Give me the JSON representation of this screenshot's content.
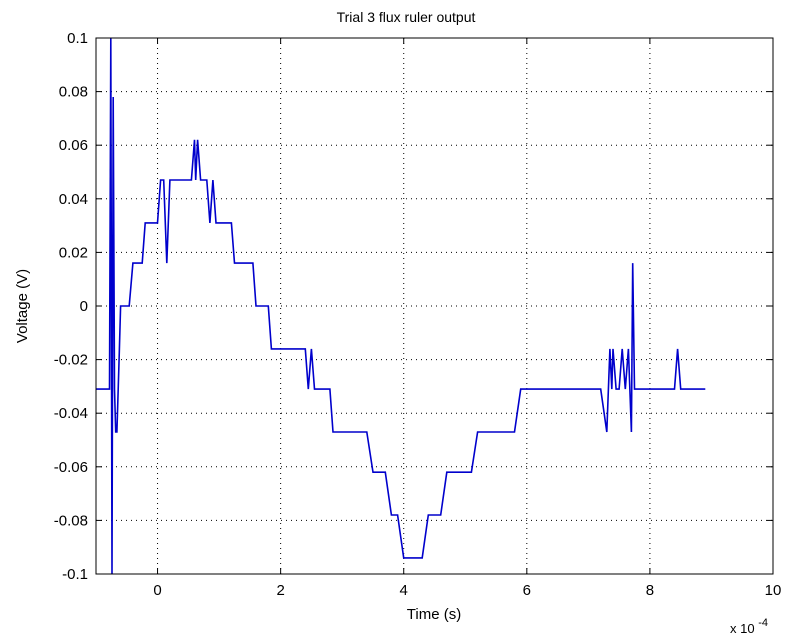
{
  "chart_data": {
    "type": "line",
    "title": "Trial 3 flux ruler output",
    "xlabel": "Time (s)",
    "ylabel": "Voltage (V)",
    "x_scale_text": "x 10",
    "x_scale_exponent": "-4",
    "xlim": [
      -1,
      10
    ],
    "ylim": [
      -0.1,
      0.1
    ],
    "x_ticks": [
      0,
      2,
      4,
      6,
      8,
      10
    ],
    "x_tick_labels": [
      "0",
      "2",
      "4",
      "6",
      "8",
      "10"
    ],
    "y_ticks": [
      -0.1,
      -0.08,
      -0.06,
      -0.04,
      -0.02,
      0,
      0.02,
      0.04,
      0.06,
      0.08,
      0.1
    ],
    "y_tick_labels": [
      "-0.1",
      "-0.08",
      "-0.06",
      "-0.04",
      "-0.02",
      "0",
      "0.02",
      "0.04",
      "0.06",
      "0.08",
      "0.1"
    ],
    "grid": true,
    "series": [
      {
        "color": "#0000cc",
        "x": [
          -1.0,
          -0.78,
          -0.76,
          -0.74,
          -0.72,
          -0.7,
          -0.68,
          -0.66,
          -0.64,
          -0.62,
          -0.6,
          -0.58,
          -0.56,
          -0.54,
          -0.5,
          -0.46,
          -0.4,
          -0.35,
          -0.3,
          -0.25,
          -0.2,
          -0.15,
          -0.1,
          -0.05,
          0.0,
          0.05,
          0.1,
          0.15,
          0.2,
          0.25,
          0.3,
          0.35,
          0.4,
          0.45,
          0.5,
          0.55,
          0.6,
          0.62,
          0.65,
          0.7,
          0.75,
          0.8,
          0.85,
          0.9,
          0.95,
          1.0,
          1.05,
          1.1,
          1.15,
          1.2,
          1.25,
          1.3,
          1.35,
          1.4,
          1.45,
          1.5,
          1.55,
          1.6,
          1.65,
          1.7,
          1.75,
          1.8,
          1.85,
          1.9,
          2.0,
          2.1,
          2.2,
          2.3,
          2.4,
          2.45,
          2.5,
          2.55,
          2.6,
          2.7,
          2.8,
          2.85,
          2.9,
          3.0,
          3.1,
          3.2,
          3.3,
          3.4,
          3.5,
          3.6,
          3.7,
          3.8,
          3.9,
          4.0,
          4.1,
          4.2,
          4.3,
          4.4,
          4.5,
          4.6,
          4.7,
          4.8,
          4.9,
          5.0,
          5.1,
          5.2,
          5.3,
          5.4,
          5.5,
          5.6,
          5.7,
          5.8,
          5.9,
          6.0,
          6.05,
          6.1,
          6.2,
          6.3,
          6.4,
          6.5,
          6.6,
          6.7,
          6.8,
          6.9,
          7.0,
          7.1,
          7.2,
          7.3,
          7.35,
          7.38,
          7.4,
          7.45,
          7.5,
          7.55,
          7.6,
          7.65,
          7.7,
          7.72,
          7.75,
          7.8,
          7.9,
          8.0,
          8.1,
          8.2,
          8.3,
          8.4,
          8.45,
          8.5,
          8.6,
          8.7,
          8.8,
          8.9
        ],
        "y": [
          -0.031,
          -0.031,
          0.1,
          -0.1,
          0.078,
          -0.031,
          -0.047,
          -0.047,
          -0.031,
          -0.016,
          0.0,
          0.0,
          0.0,
          0.0,
          0.0,
          0.0,
          0.016,
          0.016,
          0.016,
          0.016,
          0.031,
          0.031,
          0.031,
          0.031,
          0.031,
          0.047,
          0.047,
          0.016,
          0.047,
          0.047,
          0.047,
          0.047,
          0.047,
          0.047,
          0.047,
          0.047,
          0.062,
          0.047,
          0.062,
          0.047,
          0.047,
          0.047,
          0.031,
          0.047,
          0.031,
          0.031,
          0.031,
          0.031,
          0.031,
          0.031,
          0.016,
          0.016,
          0.016,
          0.016,
          0.016,
          0.016,
          0.016,
          0.0,
          0.0,
          0.0,
          0.0,
          0.0,
          -0.016,
          -0.016,
          -0.016,
          -0.016,
          -0.016,
          -0.016,
          -0.016,
          -0.031,
          -0.016,
          -0.031,
          -0.031,
          -0.031,
          -0.031,
          -0.047,
          -0.047,
          -0.047,
          -0.047,
          -0.047,
          -0.047,
          -0.047,
          -0.062,
          -0.062,
          -0.062,
          -0.078,
          -0.078,
          -0.094,
          -0.094,
          -0.094,
          -0.094,
          -0.078,
          -0.078,
          -0.078,
          -0.062,
          -0.062,
          -0.062,
          -0.062,
          -0.062,
          -0.047,
          -0.047,
          -0.047,
          -0.047,
          -0.047,
          -0.047,
          -0.047,
          -0.031,
          -0.031,
          -0.031,
          -0.031,
          -0.031,
          -0.031,
          -0.031,
          -0.031,
          -0.031,
          -0.031,
          -0.031,
          -0.031,
          -0.031,
          -0.031,
          -0.031,
          -0.047,
          -0.016,
          -0.031,
          -0.016,
          -0.031,
          -0.031,
          -0.016,
          -0.031,
          -0.016,
          -0.047,
          0.016,
          -0.031,
          -0.031,
          -0.031,
          -0.031,
          -0.031,
          -0.031,
          -0.031,
          -0.031,
          -0.016,
          -0.031,
          -0.031,
          -0.031,
          -0.031,
          -0.031
        ]
      }
    ]
  }
}
